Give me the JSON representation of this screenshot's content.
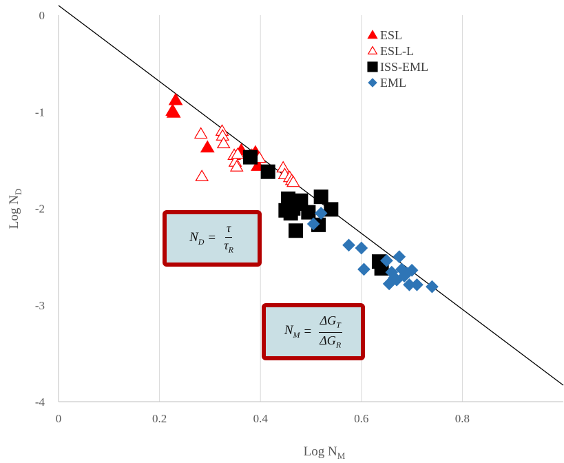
{
  "chart_data": {
    "type": "scatter",
    "xlabel": "Log N",
    "xlabel_sub": "M",
    "ylabel": "Log N",
    "ylabel_sub": "D",
    "xlim": [
      0,
      1.0
    ],
    "ylim": [
      -4,
      0
    ],
    "x_ticks": [
      "0",
      "0.2",
      "0.4",
      "0.6",
      "0.8"
    ],
    "x_tick_values": [
      0,
      0.2,
      0.4,
      0.6,
      0.8
    ],
    "y_ticks": [
      "0",
      "-1",
      "-2",
      "-3",
      "-4"
    ],
    "y_tick_values": [
      0,
      -1,
      -2,
      -3,
      -4
    ],
    "grid": "vertical",
    "legend_position": "top-right",
    "trendline": {
      "points": [
        [
          0,
          0.1
        ],
        [
          1.0,
          -3.83
        ]
      ],
      "color": "#000000"
    },
    "series": [
      {
        "name": "ESL",
        "marker": "filled-triangle",
        "color": "#ff0000",
        "x": [
          0.226,
          0.228,
          0.232,
          0.295,
          0.362,
          0.39,
          0.395
        ],
        "y": [
          -0.99,
          -1.01,
          -0.88,
          -1.37,
          -1.4,
          -1.42,
          -1.56
        ]
      },
      {
        "name": "ESL-L",
        "marker": "open-triangle",
        "color": "#ff0000",
        "x": [
          0.282,
          0.284,
          0.324,
          0.325,
          0.327,
          0.348,
          0.35,
          0.353,
          0.355,
          0.383,
          0.398,
          0.445,
          0.448,
          0.458,
          0.462,
          0.465
        ],
        "y": [
          -1.23,
          -1.67,
          -1.2,
          -1.25,
          -1.33,
          -1.45,
          -1.52,
          -1.57,
          -1.44,
          -1.45,
          -1.48,
          -1.58,
          -1.65,
          -1.68,
          -1.71,
          -1.73
        ]
      },
      {
        "name": "ISS-EML",
        "marker": "filled-square",
        "color": "#000000",
        "x": [
          0.38,
          0.415,
          0.45,
          0.455,
          0.46,
          0.465,
          0.47,
          0.475,
          0.48,
          0.495,
          0.515,
          0.52,
          0.54,
          0.635,
          0.64
        ],
        "y": [
          -1.47,
          -1.62,
          -2.02,
          -1.9,
          -2.05,
          -2.0,
          -2.23,
          -1.95,
          -1.92,
          -2.04,
          -2.17,
          -1.88,
          -2.01,
          -2.55,
          -2.62
        ]
      },
      {
        "name": "EML",
        "marker": "filled-diamond",
        "color": "#2e75b6",
        "x": [
          0.505,
          0.52,
          0.575,
          0.6,
          0.605,
          0.65,
          0.655,
          0.66,
          0.665,
          0.67,
          0.675,
          0.68,
          0.685,
          0.69,
          0.695,
          0.7,
          0.71,
          0.74
        ],
        "y": [
          -2.16,
          -2.05,
          -2.38,
          -2.41,
          -2.63,
          -2.54,
          -2.78,
          -2.66,
          -2.72,
          -2.74,
          -2.5,
          -2.63,
          -2.7,
          -2.67,
          -2.79,
          -2.64,
          -2.79,
          -2.81
        ]
      }
    ]
  },
  "formulas": {
    "nd": {
      "lhs": "N",
      "lhs_sub": "D",
      "eq": "=",
      "num": "τ",
      "den": "τ",
      "den_sub": "R"
    },
    "nm": {
      "lhs": "N",
      "lhs_sub": "M",
      "eq": "=",
      "num": "ΔG",
      "num_sub": "T",
      "den": "ΔG",
      "den_sub": "R"
    }
  }
}
